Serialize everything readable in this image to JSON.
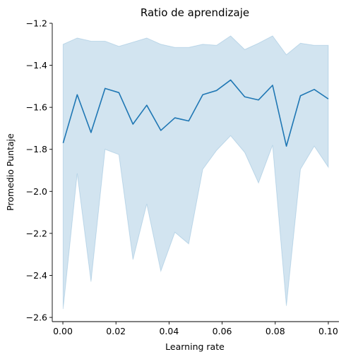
{
  "chart_data": {
    "type": "line",
    "title": "Ratio de aprendizaje",
    "xlabel": "Learning rate",
    "ylabel": "Promedio Puntaje",
    "xlim": [
      -0.004,
      0.104
    ],
    "ylim": [
      -2.62,
      -1.2
    ],
    "xticks": [
      0.0,
      0.02,
      0.04,
      0.06,
      0.08,
      0.1
    ],
    "xtick_labels": [
      "0.00",
      "0.02",
      "0.04",
      "0.06",
      "0.08",
      "0.10"
    ],
    "yticks": [
      -2.6,
      -2.4,
      -2.2,
      -2.0,
      -1.8,
      -1.6,
      -1.4,
      -1.2
    ],
    "ytick_labels": [
      "−2.6",
      "−2.4",
      "−2.2",
      "−2.0",
      "−1.8",
      "−1.6",
      "−1.4",
      "−1.2"
    ],
    "grid": false,
    "colors": {
      "line": "#1f77b4",
      "band": "#1f77b4",
      "band_opacity": 0.2
    },
    "series": [
      {
        "x": [
          0.0001,
          0.0054,
          0.0106,
          0.0159,
          0.0211,
          0.0264,
          0.0316,
          0.0369,
          0.0422,
          0.0474,
          0.0527,
          0.0579,
          0.0632,
          0.0685,
          0.0737,
          0.079,
          0.0842,
          0.0895,
          0.0947,
          0.1
        ],
        "values": [
          -1.77,
          -1.54,
          -1.72,
          -1.51,
          -1.53,
          -1.68,
          -1.59,
          -1.71,
          -1.65,
          -1.665,
          -1.54,
          -1.52,
          -1.47,
          -1.55,
          -1.565,
          -1.495,
          -1.785,
          -1.545,
          -1.515,
          -1.56
        ],
        "upper": [
          -1.3,
          -1.27,
          -1.285,
          -1.285,
          -1.31,
          -1.29,
          -1.27,
          -1.3,
          -1.315,
          -1.315,
          -1.3,
          -1.305,
          -1.26,
          -1.325,
          -1.295,
          -1.26,
          -1.35,
          -1.295,
          -1.305,
          -1.305
        ],
        "lower": [
          -2.56,
          -1.915,
          -2.43,
          -1.8,
          -1.825,
          -2.325,
          -2.06,
          -2.38,
          -2.195,
          -2.25,
          -1.895,
          -1.805,
          -1.735,
          -1.815,
          -1.96,
          -1.78,
          -2.545,
          -1.895,
          -1.785,
          -1.885
        ]
      }
    ]
  }
}
